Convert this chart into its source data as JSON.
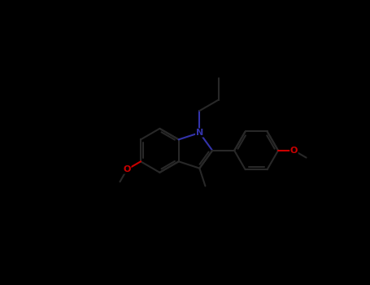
{
  "bg": "#000000",
  "bond_color": "#282828",
  "N_color": "#3333aa",
  "O_color": "#cc0000",
  "lw": 1.5,
  "figsize": [
    4.55,
    3.5
  ],
  "dpi": 100,
  "xlim": [
    -1.0,
    10.0
  ],
  "ylim": [
    -0.5,
    9.5
  ]
}
